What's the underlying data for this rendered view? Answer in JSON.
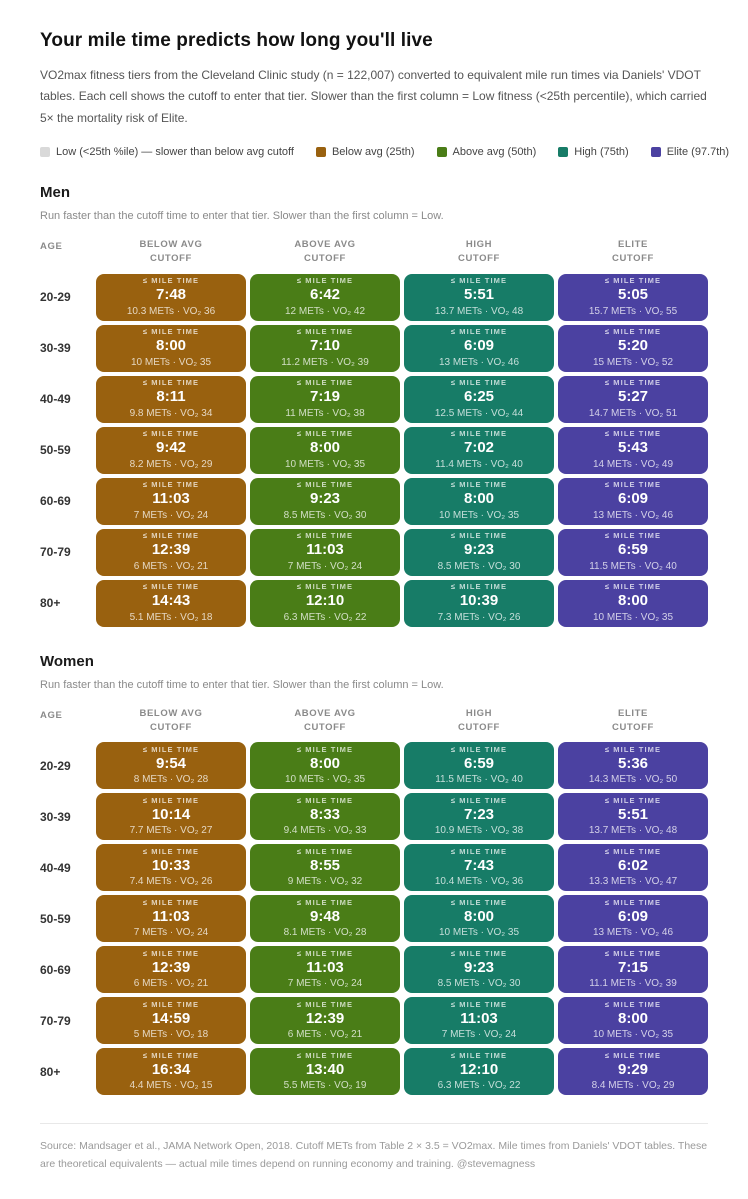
{
  "title": "Your mile time predicts how long you'll live",
  "subtitle": "VO2max fitness tiers from the Cleveland Clinic study (n = 122,007) converted to equivalent mile run times via Daniels' VDOT tables. Each cell shows the cutoff to enter that tier. Slower than the first column = Low fitness (<25th percentile), which carried 5× the mortality risk of Elite.",
  "legend": [
    {
      "label": "Low (<25th %ile) — slower than below avg cutoff",
      "color": "#d9d9d9"
    },
    {
      "label": "Below avg (25th)",
      "color": "#99610f"
    },
    {
      "label": "Above avg (50th)",
      "color": "#4a7d17"
    },
    {
      "label": "High (75th)",
      "color": "#177c67"
    },
    {
      "label": "Elite (97.7th)",
      "color": "#4b41a1"
    }
  ],
  "footer": "Source: Mandsager et al., JAMA Network Open, 2018. Cutoff METs from Table 2 × 3.5 = VO2max. Mile times from Daniels' VDOT tables. These are theoretical equivalents — actual mile times depend on running economy and training. @stevemagness",
  "chart_data": {
    "type": "table",
    "cell_label": "≤ MILE TIME",
    "age_header": "AGE",
    "col_headers": [
      [
        "BELOW AVG",
        "CUTOFF"
      ],
      [
        "ABOVE AVG",
        "CUTOFF"
      ],
      [
        "HIGH",
        "CUTOFF"
      ],
      [
        "ELITE",
        "CUTOFF"
      ]
    ],
    "sections": [
      {
        "heading": "Men",
        "note": "Run faster than the cutoff time to enter that tier. Slower than the first column = Low.",
        "rows": [
          {
            "age": "20-29",
            "cells": [
              [
                "7:48",
                "10.3 METs · VO₂ 36"
              ],
              [
                "6:42",
                "12 METs · VO₂ 42"
              ],
              [
                "5:51",
                "13.7 METs · VO₂ 48"
              ],
              [
                "5:05",
                "15.7 METs · VO₂ 55"
              ]
            ]
          },
          {
            "age": "30-39",
            "cells": [
              [
                "8:00",
                "10 METs · VO₂ 35"
              ],
              [
                "7:10",
                "11.2 METs · VO₂ 39"
              ],
              [
                "6:09",
                "13 METs · VO₂ 46"
              ],
              [
                "5:20",
                "15 METs · VO₂ 52"
              ]
            ]
          },
          {
            "age": "40-49",
            "cells": [
              [
                "8:11",
                "9.8 METs · VO₂ 34"
              ],
              [
                "7:19",
                "11 METs · VO₂ 38"
              ],
              [
                "6:25",
                "12.5 METs · VO₂ 44"
              ],
              [
                "5:27",
                "14.7 METs · VO₂ 51"
              ]
            ]
          },
          {
            "age": "50-59",
            "cells": [
              [
                "9:42",
                "8.2 METs · VO₂ 29"
              ],
              [
                "8:00",
                "10 METs · VO₂ 35"
              ],
              [
                "7:02",
                "11.4 METs · VO₂ 40"
              ],
              [
                "5:43",
                "14 METs · VO₂ 49"
              ]
            ]
          },
          {
            "age": "60-69",
            "cells": [
              [
                "11:03",
                "7 METs · VO₂ 24"
              ],
              [
                "9:23",
                "8.5 METs · VO₂ 30"
              ],
              [
                "8:00",
                "10 METs · VO₂ 35"
              ],
              [
                "6:09",
                "13 METs · VO₂ 46"
              ]
            ]
          },
          {
            "age": "70-79",
            "cells": [
              [
                "12:39",
                "6 METs · VO₂ 21"
              ],
              [
                "11:03",
                "7 METs · VO₂ 24"
              ],
              [
                "9:23",
                "8.5 METs · VO₂ 30"
              ],
              [
                "6:59",
                "11.5 METs · VO₂ 40"
              ]
            ]
          },
          {
            "age": "80+",
            "cells": [
              [
                "14:43",
                "5.1 METs · VO₂ 18"
              ],
              [
                "12:10",
                "6.3 METs · VO₂ 22"
              ],
              [
                "10:39",
                "7.3 METs · VO₂ 26"
              ],
              [
                "8:00",
                "10 METs · VO₂ 35"
              ]
            ]
          }
        ]
      },
      {
        "heading": "Women",
        "note": "Run faster than the cutoff time to enter that tier. Slower than the first column = Low.",
        "rows": [
          {
            "age": "20-29",
            "cells": [
              [
                "9:54",
                "8 METs · VO₂ 28"
              ],
              [
                "8:00",
                "10 METs · VO₂ 35"
              ],
              [
                "6:59",
                "11.5 METs · VO₂ 40"
              ],
              [
                "5:36",
                "14.3 METs · VO₂ 50"
              ]
            ]
          },
          {
            "age": "30-39",
            "cells": [
              [
                "10:14",
                "7.7 METs · VO₂ 27"
              ],
              [
                "8:33",
                "9.4 METs · VO₂ 33"
              ],
              [
                "7:23",
                "10.9 METs · VO₂ 38"
              ],
              [
                "5:51",
                "13.7 METs · VO₂ 48"
              ]
            ]
          },
          {
            "age": "40-49",
            "cells": [
              [
                "10:33",
                "7.4 METs · VO₂ 26"
              ],
              [
                "8:55",
                "9 METs · VO₂ 32"
              ],
              [
                "7:43",
                "10.4 METs · VO₂ 36"
              ],
              [
                "6:02",
                "13.3 METs · VO₂ 47"
              ]
            ]
          },
          {
            "age": "50-59",
            "cells": [
              [
                "11:03",
                "7 METs · VO₂ 24"
              ],
              [
                "9:48",
                "8.1 METs · VO₂ 28"
              ],
              [
                "8:00",
                "10 METs · VO₂ 35"
              ],
              [
                "6:09",
                "13 METs · VO₂ 46"
              ]
            ]
          },
          {
            "age": "60-69",
            "cells": [
              [
                "12:39",
                "6 METs · VO₂ 21"
              ],
              [
                "11:03",
                "7 METs · VO₂ 24"
              ],
              [
                "9:23",
                "8.5 METs · VO₂ 30"
              ],
              [
                "7:15",
                "11.1 METs · VO₂ 39"
              ]
            ]
          },
          {
            "age": "70-79",
            "cells": [
              [
                "14:59",
                "5 METs · VO₂ 18"
              ],
              [
                "12:39",
                "6 METs · VO₂ 21"
              ],
              [
                "11:03",
                "7 METs · VO₂ 24"
              ],
              [
                "8:00",
                "10 METs · VO₂ 35"
              ]
            ]
          },
          {
            "age": "80+",
            "cells": [
              [
                "16:34",
                "4.4 METs · VO₂ 15"
              ],
              [
                "13:40",
                "5.5 METs · VO₂ 19"
              ],
              [
                "12:10",
                "6.3 METs · VO₂ 22"
              ],
              [
                "9:29",
                "8.4 METs · VO₂ 29"
              ]
            ]
          }
        ]
      }
    ]
  }
}
